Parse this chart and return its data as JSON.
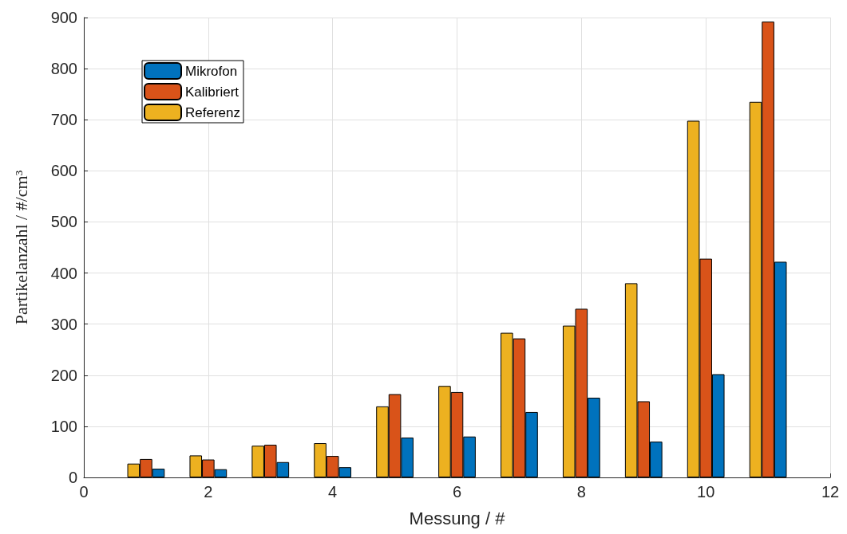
{
  "chart_data": {
    "type": "bar",
    "xlabel": "Messung / #",
    "ylabel": "Partikelanzahl / #/cm³",
    "x": [
      1,
      2,
      3,
      4,
      5,
      6,
      7,
      8,
      9,
      10,
      11
    ],
    "series": [
      {
        "name": "Referenz",
        "color": "#edb120",
        "values": [
          27,
          43,
          62,
          67,
          139,
          179,
          283,
          297,
          380,
          698,
          735
        ]
      },
      {
        "name": "Kalibriert",
        "color": "#d95319",
        "values": [
          36,
          35,
          64,
          42,
          163,
          167,
          272,
          330,
          149,
          428,
          892
        ]
      },
      {
        "name": "Mikrofon",
        "color": "#0072bd",
        "values": [
          17,
          16,
          30,
          20,
          78,
          80,
          128,
          156,
          70,
          202,
          422
        ]
      }
    ],
    "xlim": [
      0,
      12
    ],
    "xticks": [
      0,
      2,
      4,
      6,
      8,
      10,
      12
    ],
    "ylim": [
      0,
      900
    ],
    "yticks": [
      0,
      100,
      200,
      300,
      400,
      500,
      600,
      700,
      800,
      900
    ],
    "grid": true,
    "legend": "top left"
  }
}
